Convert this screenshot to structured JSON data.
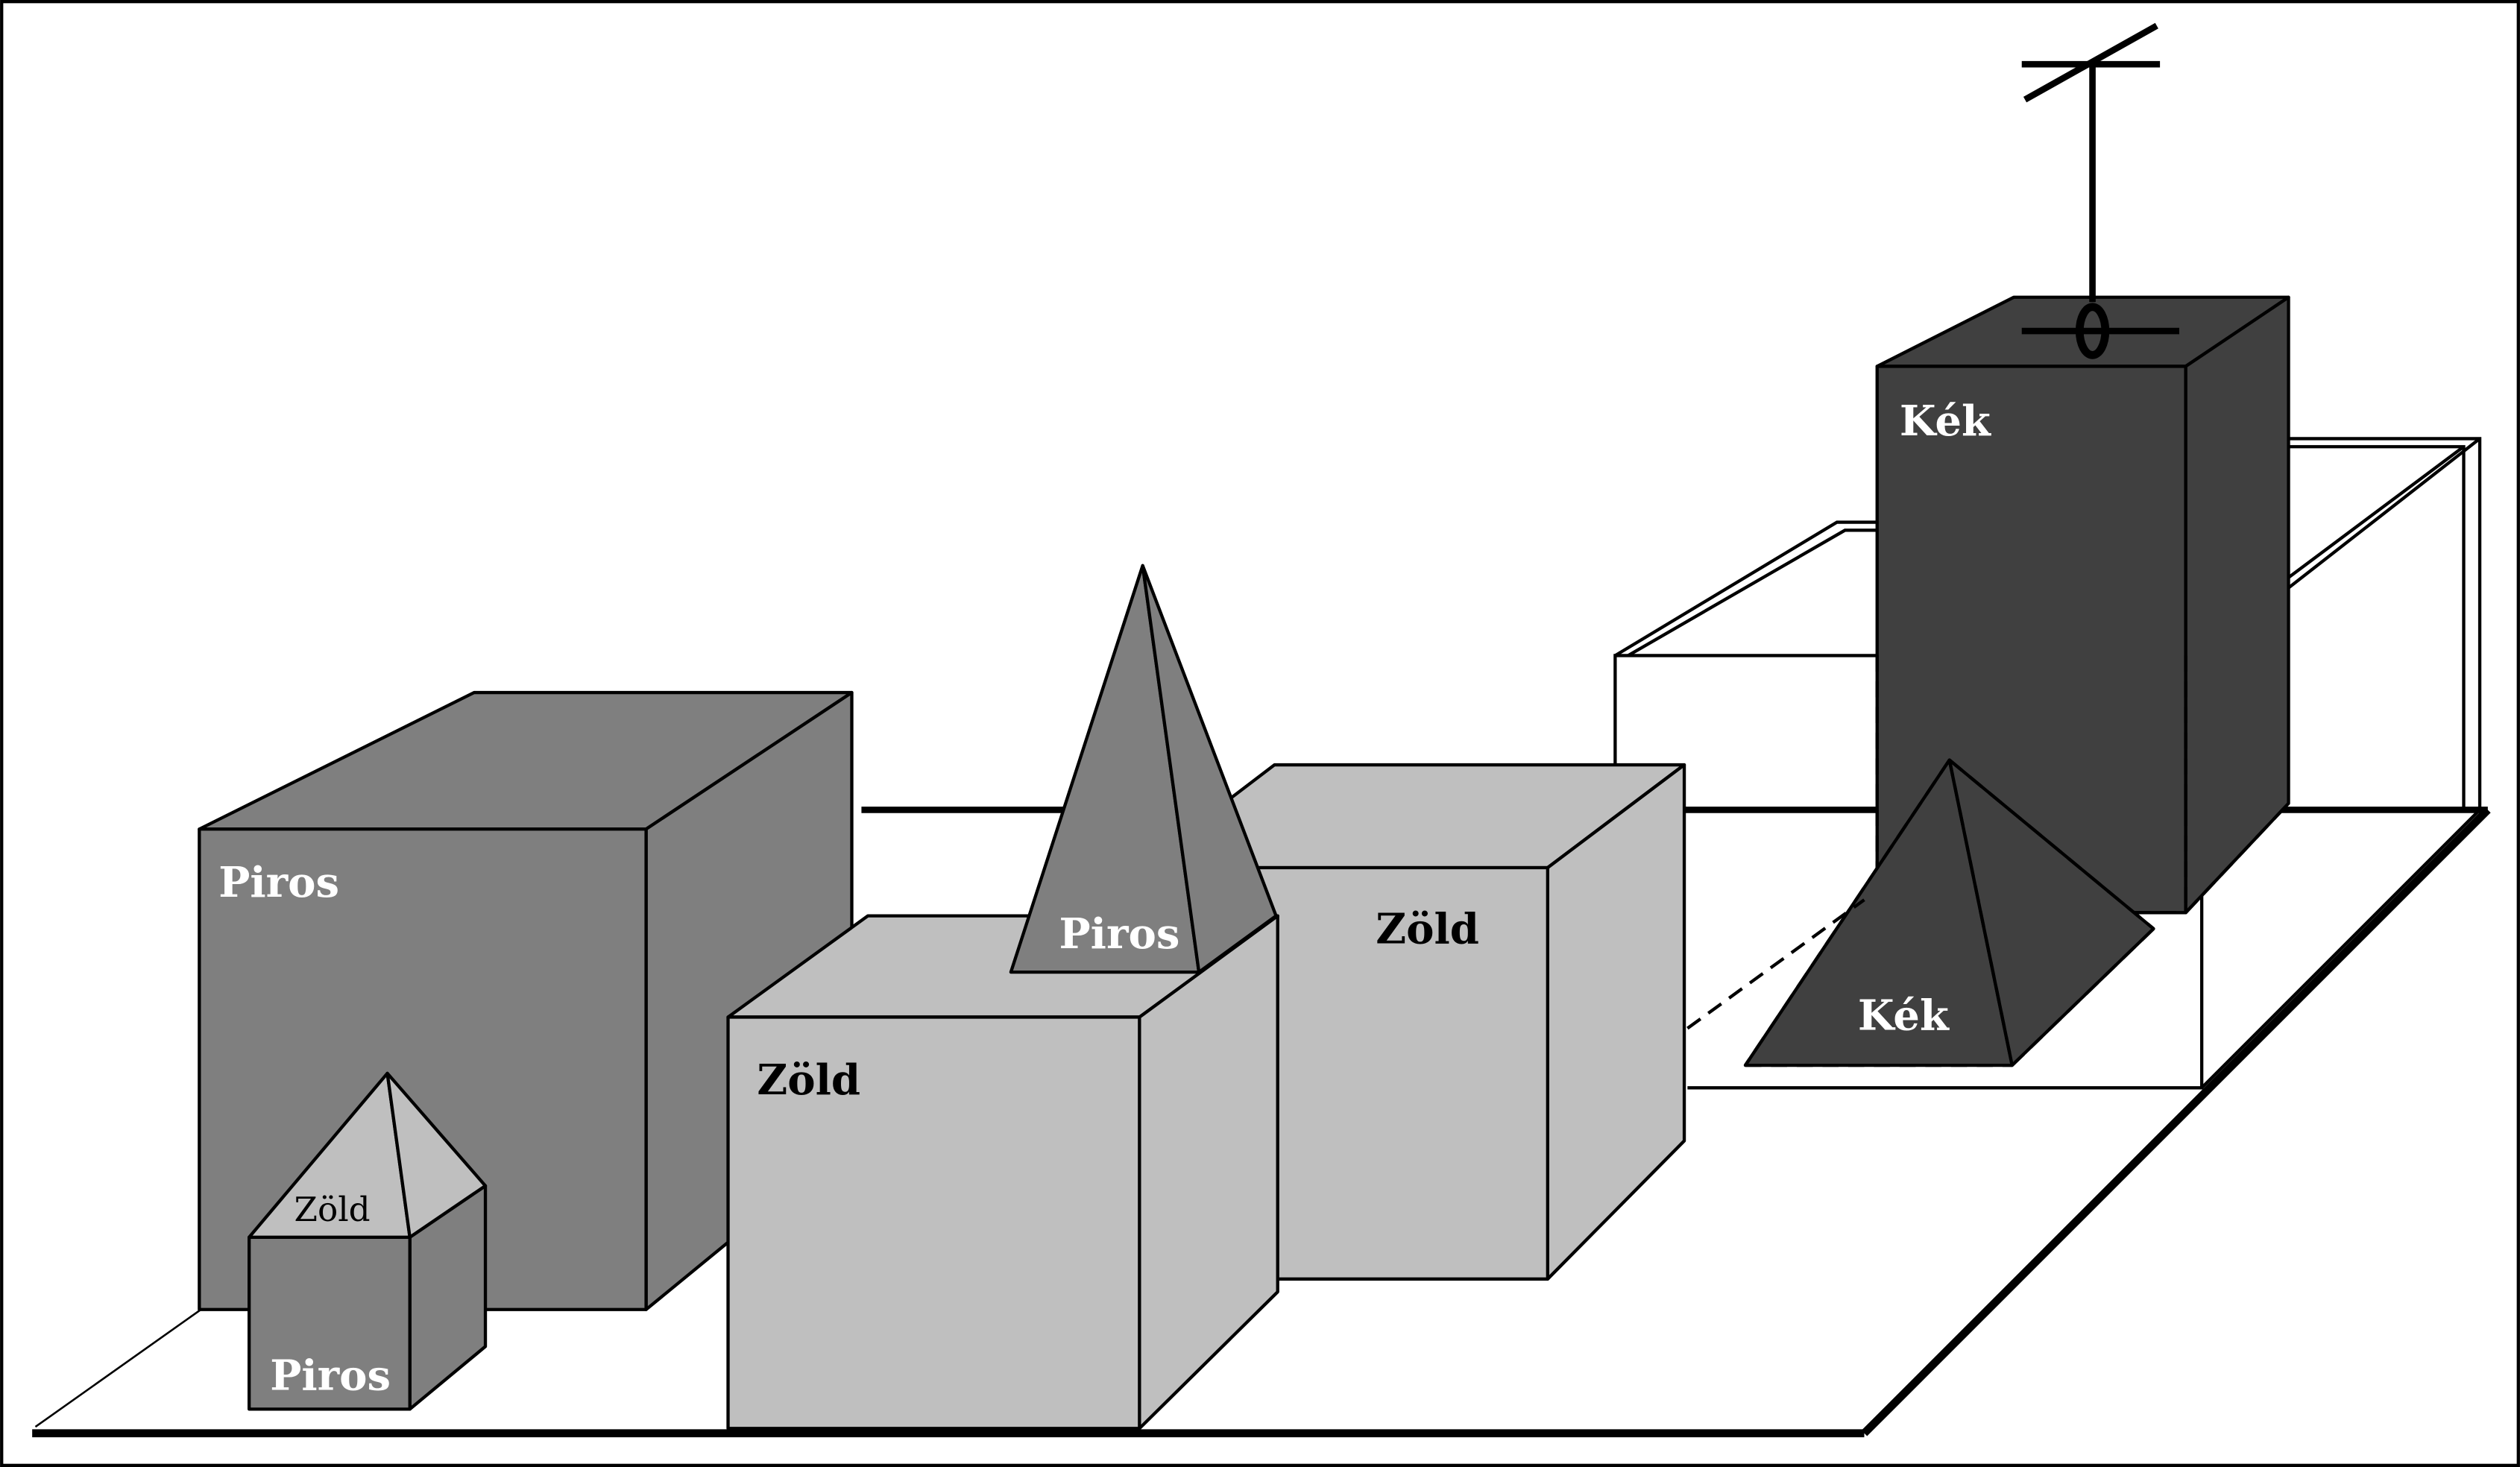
{
  "labels": {
    "big_red_box": "Piros",
    "small_red_box": "Piros",
    "small_green_pyramid": "Zöld",
    "front_green_box": "Zöld",
    "back_green_box": "Zöld",
    "red_pyramid": "Piros",
    "blue_box": "Kék",
    "blue_pyramid": "Kék"
  },
  "colors": {
    "red": "#7f7f7f",
    "green": "#bfbfbf",
    "blue": "#404040",
    "outline": "#000000",
    "text_light": "#ffffff",
    "text_dark": "#000000"
  }
}
